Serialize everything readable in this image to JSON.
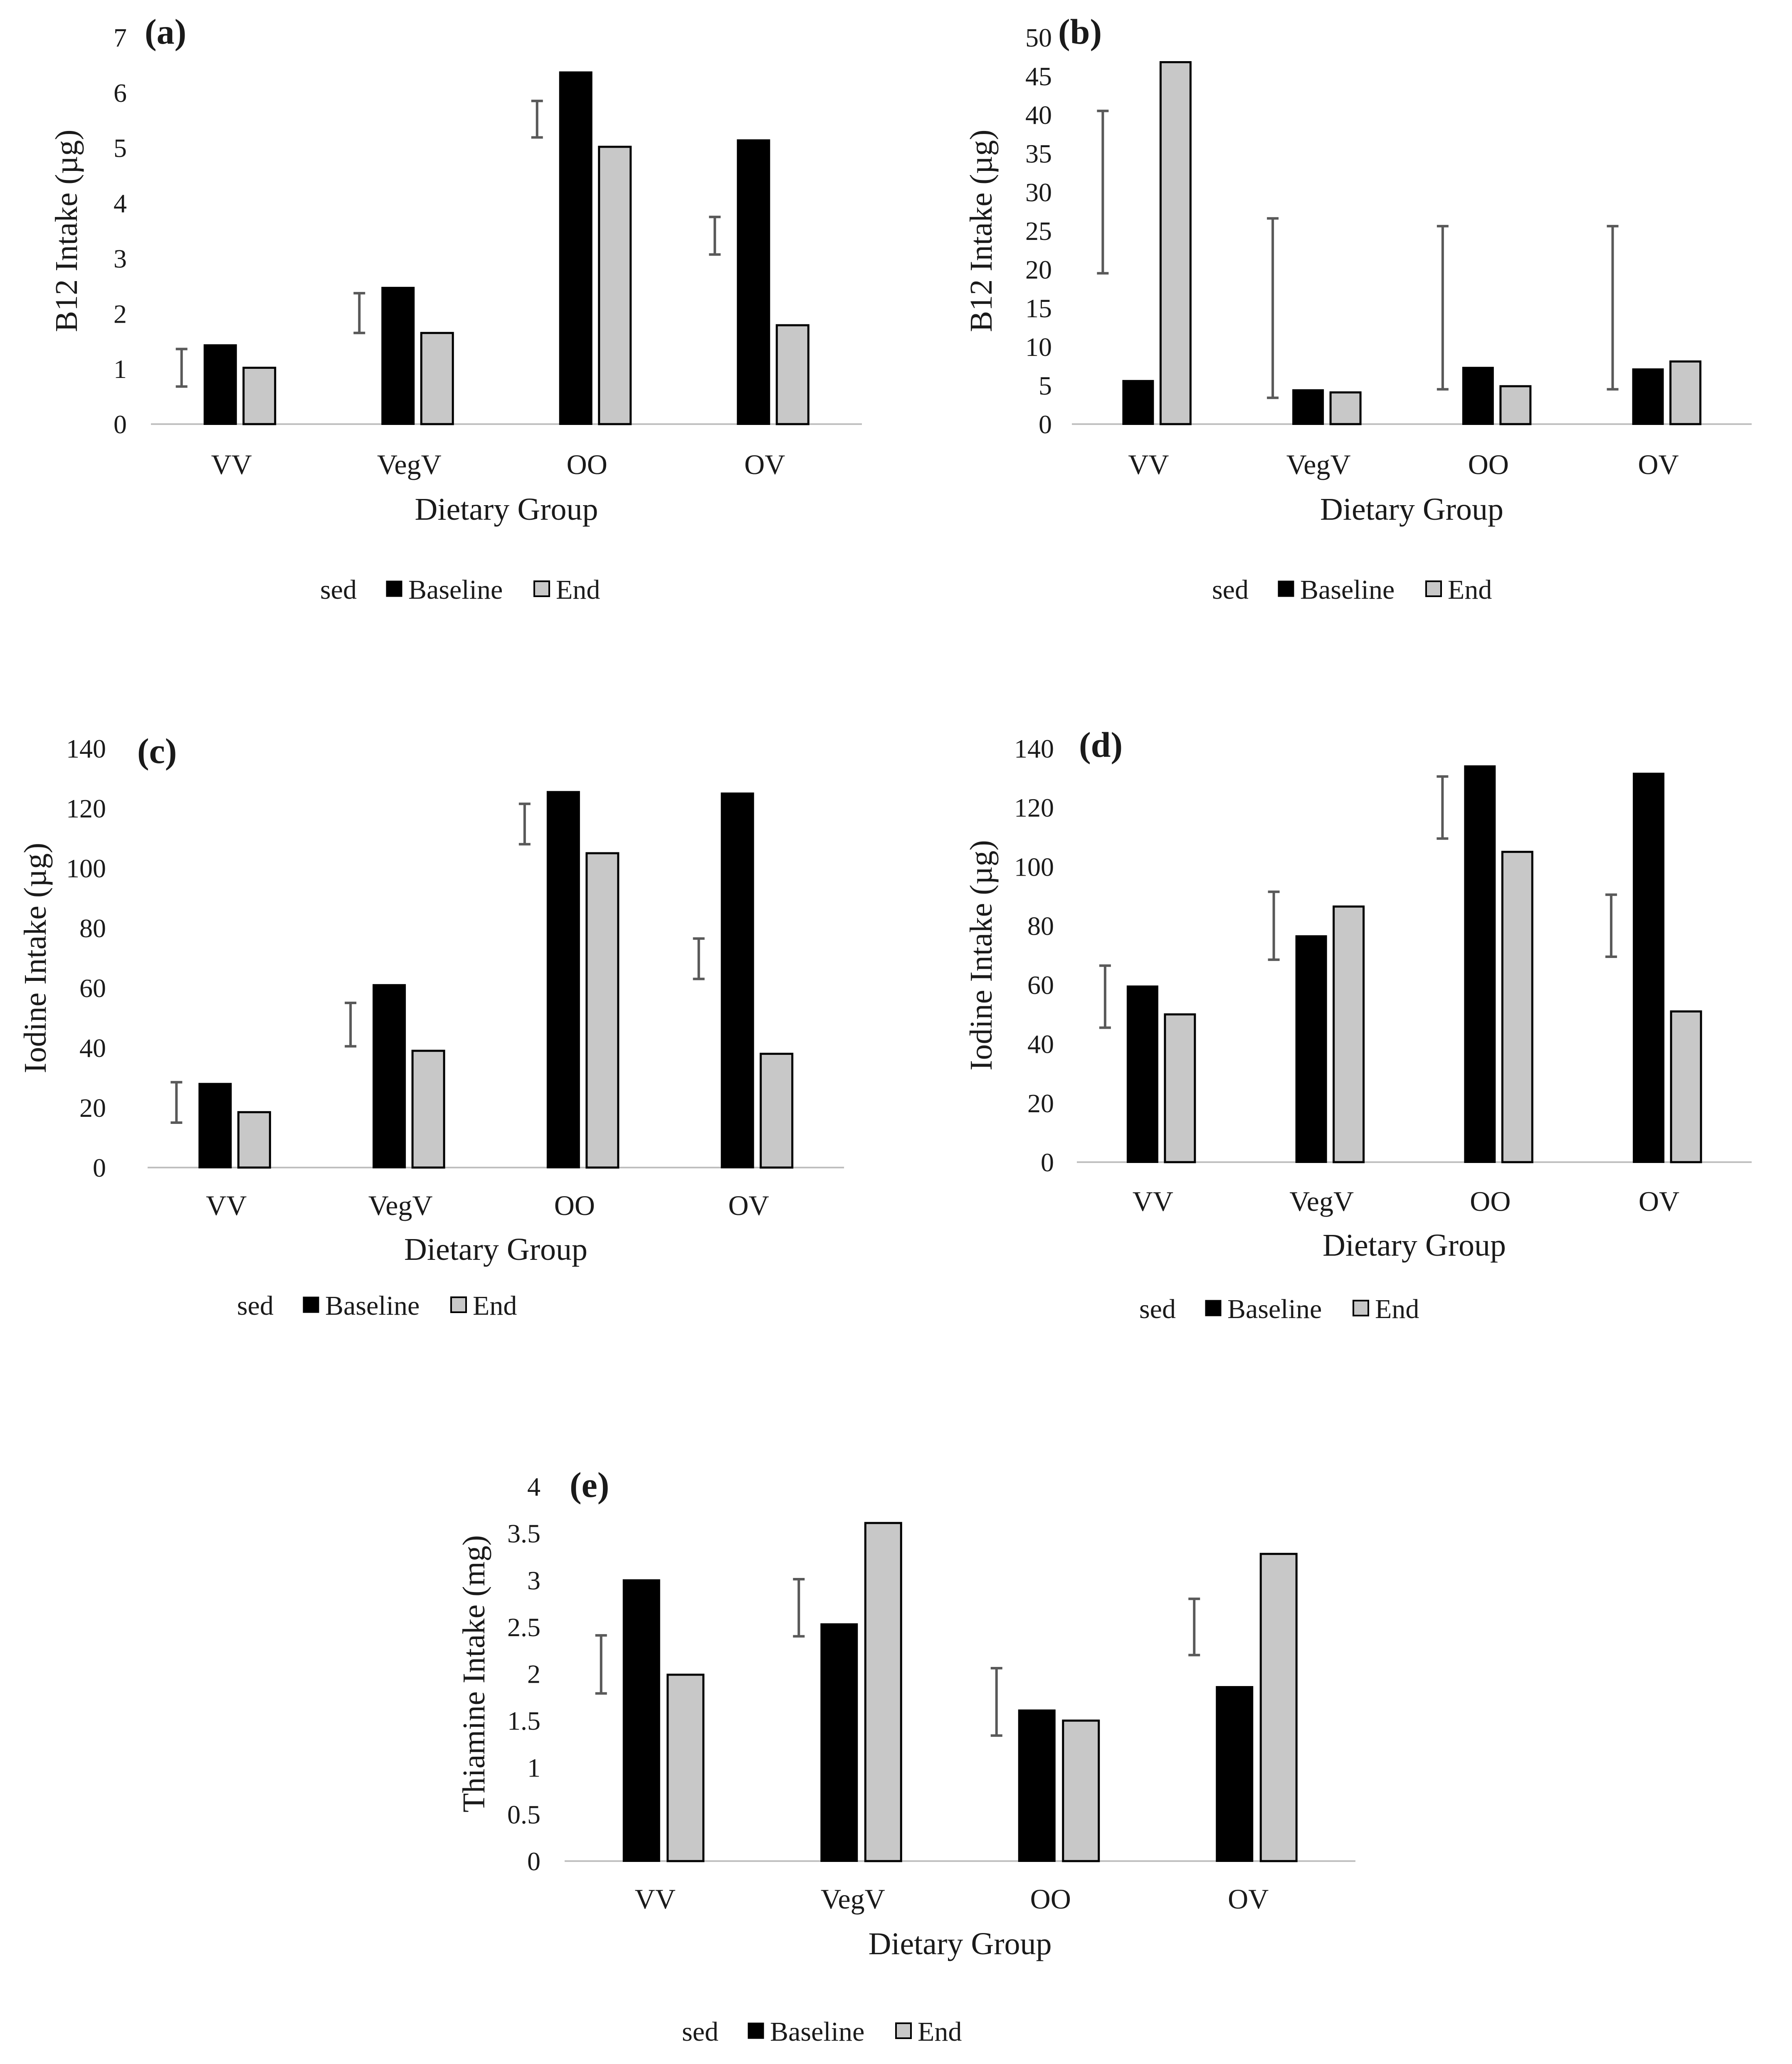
{
  "chart_data": [
    {
      "id": "a",
      "type": "bar",
      "panel_label": "(a)",
      "categories": [
        "VV",
        "VegV",
        "OO",
        "OV"
      ],
      "series": [
        {
          "name": "Baseline",
          "values": [
            1.43,
            2.47,
            6.37,
            5.14
          ]
        },
        {
          "name": "End",
          "values": [
            1.02,
            1.65,
            5.02,
            1.79
          ]
        }
      ],
      "sed": [
        {
          "low": 0.68,
          "high": 1.36
        },
        {
          "low": 1.65,
          "high": 2.37
        },
        {
          "low": 5.19,
          "high": 5.85
        },
        {
          "low": 3.07,
          "high": 3.75
        }
      ],
      "xlabel": "Dietary Group",
      "ylabel": "B12 Intake (µg)",
      "ylim": [
        0,
        7
      ],
      "yticks": [
        0,
        1,
        2,
        3,
        4,
        5,
        6,
        7
      ],
      "legend": [
        "sed",
        "Baseline",
        "End"
      ],
      "legend_position": "bottom"
    },
    {
      "id": "b",
      "type": "bar",
      "panel_label": "(b)",
      "categories": [
        "VV",
        "VegV",
        "OO",
        "OV"
      ],
      "series": [
        {
          "name": "Baseline",
          "values": [
            5.6,
            4.4,
            7.3,
            7.1
          ]
        },
        {
          "name": "End",
          "values": [
            46.8,
            4.1,
            4.9,
            8.1
          ]
        }
      ],
      "sed": [
        {
          "low": 19.5,
          "high": 40.5
        },
        {
          "low": 3.4,
          "high": 26.6
        },
        {
          "low": 4.5,
          "high": 25.6
        },
        {
          "low": 4.5,
          "high": 25.6
        }
      ],
      "xlabel": "Dietary Group",
      "ylabel": "B12 Intake (µg)",
      "ylim": [
        0,
        50
      ],
      "yticks": [
        0,
        5,
        10,
        15,
        20,
        25,
        30,
        35,
        40,
        45,
        50
      ],
      "legend": [
        "sed",
        "Baseline",
        "End"
      ],
      "legend_position": "bottom"
    },
    {
      "id": "c",
      "type": "bar",
      "panel_label": "(c)",
      "categories": [
        "VV",
        "VegV",
        "OO",
        "OV"
      ],
      "series": [
        {
          "name": "Baseline",
          "values": [
            28,
            61,
            125.5,
            125
          ]
        },
        {
          "name": "End",
          "values": [
            18.5,
            39,
            105,
            38
          ]
        }
      ],
      "sed": [
        {
          "low": 15,
          "high": 28.5
        },
        {
          "low": 40.5,
          "high": 55
        },
        {
          "low": 108,
          "high": 121.5
        },
        {
          "low": 63,
          "high": 76.5
        }
      ],
      "xlabel": "Dietary Group",
      "ylabel": "Iodine Intake (µg)",
      "ylim": [
        0,
        140
      ],
      "yticks": [
        0,
        20,
        40,
        60,
        80,
        100,
        120,
        140
      ],
      "legend": [
        "sed",
        "Baseline",
        "End"
      ],
      "legend_position": "bottom"
    },
    {
      "id": "d",
      "type": "bar",
      "panel_label": "(d)",
      "categories": [
        "VV",
        "VegV",
        "OO",
        "OV"
      ],
      "series": [
        {
          "name": "Baseline",
          "values": [
            59.5,
            76.5,
            134,
            131.5
          ]
        },
        {
          "name": "End",
          "values": [
            50,
            86.5,
            105,
            51
          ]
        }
      ],
      "sed": [
        {
          "low": 45.5,
          "high": 66.5
        },
        {
          "low": 68.5,
          "high": 91.5
        },
        {
          "low": 109.5,
          "high": 130.5
        },
        {
          "low": 69.5,
          "high": 90.5
        }
      ],
      "xlabel": "Dietary Group",
      "ylabel": "Iodine Intake (µg)",
      "ylim": [
        0,
        140
      ],
      "yticks": [
        0,
        20,
        40,
        60,
        80,
        100,
        120,
        140
      ],
      "legend": [
        "sed",
        "Baseline",
        "End"
      ],
      "legend_position": "bottom"
    },
    {
      "id": "e",
      "type": "bar",
      "panel_label": "(e)",
      "categories": [
        "VV",
        "VegV",
        "OO",
        "OV"
      ],
      "series": [
        {
          "name": "Baseline",
          "values": [
            3.0,
            2.53,
            1.61,
            1.86
          ]
        },
        {
          "name": "End",
          "values": [
            1.99,
            3.61,
            1.5,
            3.28
          ]
        }
      ],
      "sed": [
        {
          "low": 1.79,
          "high": 2.41
        },
        {
          "low": 2.4,
          "high": 3.01
        },
        {
          "low": 1.34,
          "high": 2.06
        },
        {
          "low": 2.2,
          "high": 2.8
        }
      ],
      "xlabel": "Dietary Group",
      "ylabel": "Thiamine Intake (mg)",
      "ylim": [
        0,
        4
      ],
      "yticks": [
        0,
        0.5,
        1,
        1.5,
        2,
        2.5,
        3,
        3.5,
        4
      ],
      "legend": [
        "sed",
        "Baseline",
        "End"
      ],
      "legend_position": "bottom"
    }
  ],
  "colors": {
    "baseline": "#000000",
    "end": "#c8c8c8",
    "sed": "#595959",
    "axis": "#bfbfbf"
  }
}
